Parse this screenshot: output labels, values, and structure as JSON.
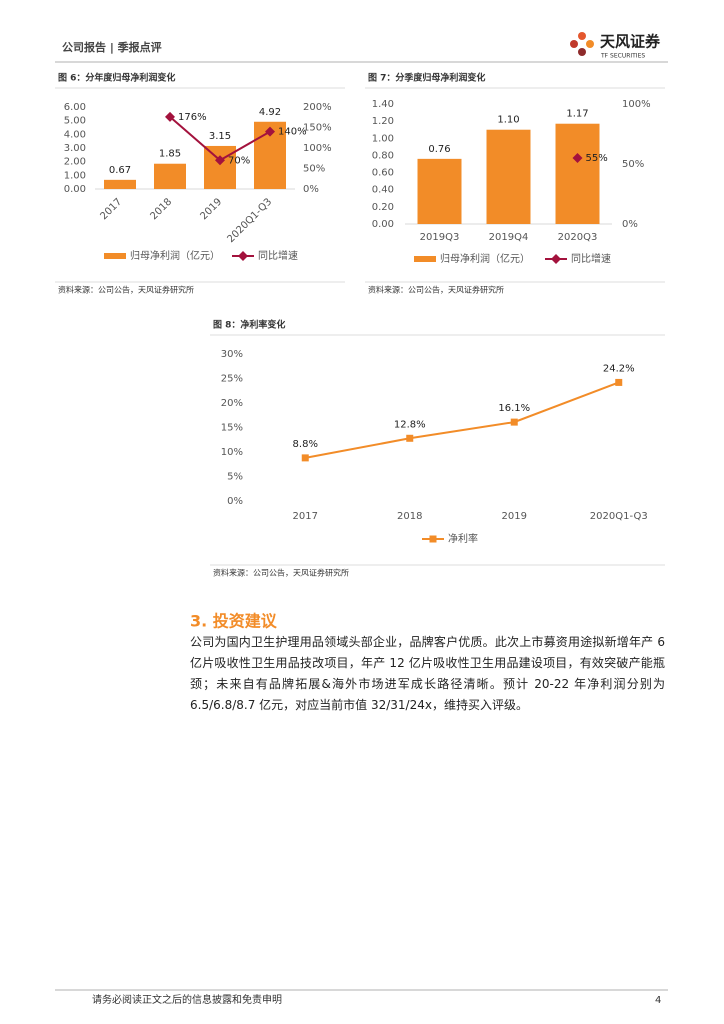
{
  "header": {
    "left": "公司报告 | 季报点评",
    "brand": "天风证券",
    "brand_en": "TF SECURITIES"
  },
  "chart_data": [
    {
      "type": "bar",
      "title": "图 6：分年度归母净利润变化",
      "categories": [
        "2017",
        "2018",
        "2019",
        "2020Q1-Q3"
      ],
      "series": [
        {
          "name": "归母净利润（亿元）",
          "type": "bar",
          "color": "#f28c28",
          "values": [
            0.67,
            1.85,
            3.15,
            4.92
          ]
        },
        {
          "name": "同比增速",
          "type": "line",
          "axis": "y2",
          "color": "#a3123d",
          "values": [
            null,
            176,
            70,
            140
          ],
          "value_labels": [
            null,
            "176%",
            "70%",
            "140%"
          ]
        }
      ],
      "ylim": [
        0,
        6
      ],
      "yticks": [
        {
          "value": 0,
          "label": "0.00"
        },
        {
          "value": 1,
          "label": "1.00"
        },
        {
          "value": 2,
          "label": "2.00"
        },
        {
          "value": 3,
          "label": "3.00"
        },
        {
          "value": 4,
          "label": "4.00"
        },
        {
          "value": 5,
          "label": "5.00"
        },
        {
          "value": 6,
          "label": "6.00"
        }
      ],
      "y2lim": [
        0,
        200
      ],
      "y2ticks": [
        {
          "value": 0,
          "label": "0%"
        },
        {
          "value": 50,
          "label": "50%"
        },
        {
          "value": 100,
          "label": "100%"
        },
        {
          "value": 150,
          "label": "150%"
        },
        {
          "value": 200,
          "label": "200%"
        }
      ],
      "source": "资料来源：公司公告，天风证券研究所"
    },
    {
      "type": "bar",
      "title": "图 7：分季度归母净利润变化",
      "categories": [
        "2019Q3",
        "2019Q4",
        "2020Q3"
      ],
      "series": [
        {
          "name": "归母净利润（亿元）",
          "type": "bar",
          "color": "#f28c28",
          "values": [
            0.76,
            1.1,
            1.17
          ],
          "value_labels": [
            "0.76",
            "1.10",
            "1.17"
          ]
        },
        {
          "name": "同比增速",
          "type": "line",
          "axis": "y2",
          "color": "#a3123d",
          "values": [
            null,
            null,
            55
          ],
          "value_labels": [
            null,
            null,
            "55%"
          ]
        }
      ],
      "ylim": [
        0,
        1.4
      ],
      "yticks": [
        {
          "value": 0,
          "label": "0.00"
        },
        {
          "value": 0.2,
          "label": "0.20"
        },
        {
          "value": 0.4,
          "label": "0.40"
        },
        {
          "value": 0.6,
          "label": "0.60"
        },
        {
          "value": 0.8,
          "label": "0.80"
        },
        {
          "value": 1,
          "label": "1.00"
        },
        {
          "value": 1.2,
          "label": "1.20"
        },
        {
          "value": 1.4,
          "label": "1.40"
        }
      ],
      "y2lim": [
        0,
        100
      ],
      "y2ticks": [
        {
          "value": 0,
          "label": "0%"
        },
        {
          "value": 50,
          "label": "50%"
        },
        {
          "value": 100,
          "label": "100%"
        }
      ],
      "source": "资料来源：公司公告，天风证券研究所"
    },
    {
      "type": "line",
      "title": "图 8：净利率变化",
      "categories": [
        "2017",
        "2018",
        "2019",
        "2020Q1-Q3"
      ],
      "series": [
        {
          "name": "净利率",
          "type": "line",
          "color": "#f28c28",
          "values": [
            8.8,
            12.8,
            16.1,
            24.2
          ],
          "value_labels": [
            "8.8%",
            "12.8%",
            "16.1%",
            "24.2%"
          ]
        }
      ],
      "ylim": [
        0,
        30
      ],
      "yticks": [
        {
          "value": 0,
          "label": "0%"
        },
        {
          "value": 5,
          "label": "5%"
        },
        {
          "value": 10,
          "label": "10%"
        },
        {
          "value": 15,
          "label": "15%"
        },
        {
          "value": 20,
          "label": "20%"
        },
        {
          "value": 25,
          "label": "25%"
        },
        {
          "value": 30,
          "label": "30%"
        }
      ],
      "source": "资料来源：公司公告，天风证券研究所"
    }
  ],
  "section": {
    "title": "3. 投资建议",
    "text": "公司为国内卫生护理用品领域头部企业，品牌客户优质。此次上市募资用途拟新增年产 6 亿片吸收性卫生用品技改项目，年产 12 亿片吸收性卫生用品建设项目，有效突破产能瓶颈；未来自有品牌拓展&海外市场进军成长路径清晰。预计 20-22 年净利润分别为 6.5/6.8/8.7 亿元，对应当前市值 32/31/24x，维持买入评级。"
  },
  "footer": {
    "disclaimer": "请务必阅读正文之后的信息披露和免责申明",
    "page": "4"
  }
}
